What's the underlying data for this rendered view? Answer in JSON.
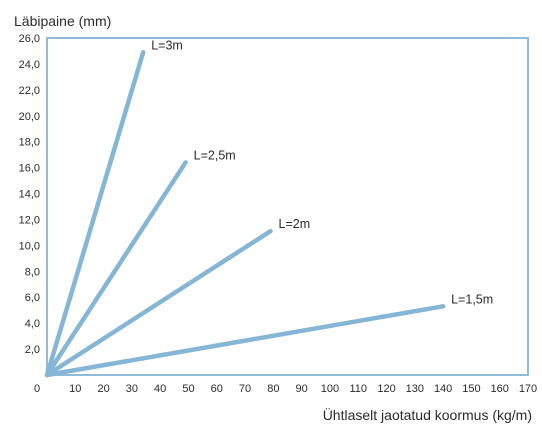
{
  "chart_data": {
    "type": "line",
    "ylabel": "Läbipaine (mm)",
    "xlabel": "Ühtlaselt jaotatud koormus (kg/m)",
    "xlim": [
      0,
      170
    ],
    "ylim": [
      0,
      26
    ],
    "x_ticks": [
      "0",
      "10",
      "20",
      "30",
      "40",
      "50",
      "60",
      "70",
      "80",
      "90",
      "100",
      "110",
      "120",
      "130",
      "140",
      "150",
      "160",
      "170"
    ],
    "y_ticks": [
      "2,0",
      "4,0",
      "6,0",
      "8,0",
      "10,0",
      "12,0",
      "14,0",
      "16,0",
      "18,0",
      "20,0",
      "22,0",
      "24,0",
      "26,0"
    ],
    "grid": false,
    "series": [
      {
        "name": "L=3m",
        "x": [
          0,
          34
        ],
        "y": [
          0,
          24.9
        ]
      },
      {
        "name": "L=2,5m",
        "x": [
          0,
          49
        ],
        "y": [
          0,
          16.4
        ]
      },
      {
        "name": "L=2m",
        "x": [
          0,
          79
        ],
        "y": [
          0,
          11.1
        ]
      },
      {
        "name": "L=1,5m",
        "x": [
          0,
          140
        ],
        "y": [
          0,
          5.3
        ]
      }
    ],
    "line_color": "#85b6d6",
    "frame_color": "#8fbcd8"
  }
}
